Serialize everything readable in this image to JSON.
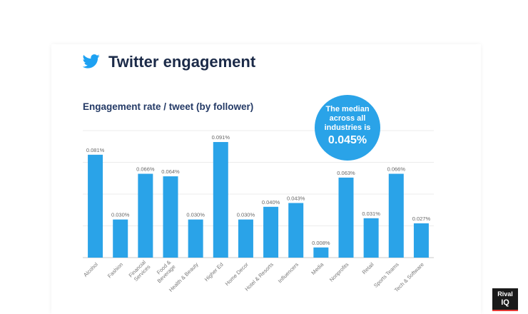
{
  "header": {
    "title": "Twitter engagement",
    "icon": "twitter-bird-icon",
    "icon_color": "#1da1f2"
  },
  "median_callout": {
    "text_lines": [
      "The median",
      "across all",
      "industries is"
    ],
    "value": "0.045%"
  },
  "logo": {
    "line1": "Rival",
    "line2": "IQ"
  },
  "chart_data": {
    "type": "bar",
    "title": "Engagement rate / tweet (by follower)",
    "categories": [
      "Alcohol",
      "Fashion",
      "Financial Services",
      "Food & Beverage",
      "Health & Beauty",
      "Higher Ed",
      "Home Decor",
      "Hotel & Resorts",
      "Influencers",
      "Media",
      "Nonprofits",
      "Retail",
      "Sports Teams",
      "Tech & Software"
    ],
    "category_lines": [
      [
        "Alcohol"
      ],
      [
        "Fashion"
      ],
      [
        "Financial",
        "Services"
      ],
      [
        "Food &",
        "Beverage"
      ],
      [
        "Health & Beauty"
      ],
      [
        "Higher Ed"
      ],
      [
        "Home Decor"
      ],
      [
        "Hotel & Resorts"
      ],
      [
        "Influencers"
      ],
      [
        "Media"
      ],
      [
        "Nonprofits"
      ],
      [
        "Retail"
      ],
      [
        "Sports Teams"
      ],
      [
        "Tech & Software"
      ]
    ],
    "values": [
      0.081,
      0.03,
      0.066,
      0.064,
      0.03,
      0.091,
      0.03,
      0.04,
      0.043,
      0.008,
      0.063,
      0.031,
      0.066,
      0.027
    ],
    "data_labels": [
      "0.081%",
      "0.030%",
      "0.066%",
      "0.064%",
      "0.030%",
      "0.091%",
      "0.030%",
      "0.040%",
      "0.043%",
      "0.008%",
      "0.063%",
      "0.031%",
      "0.066%",
      "0.027%"
    ],
    "ylim": [
      0,
      0.1
    ],
    "grid": true,
    "bar_color": "#2aa3e8"
  }
}
